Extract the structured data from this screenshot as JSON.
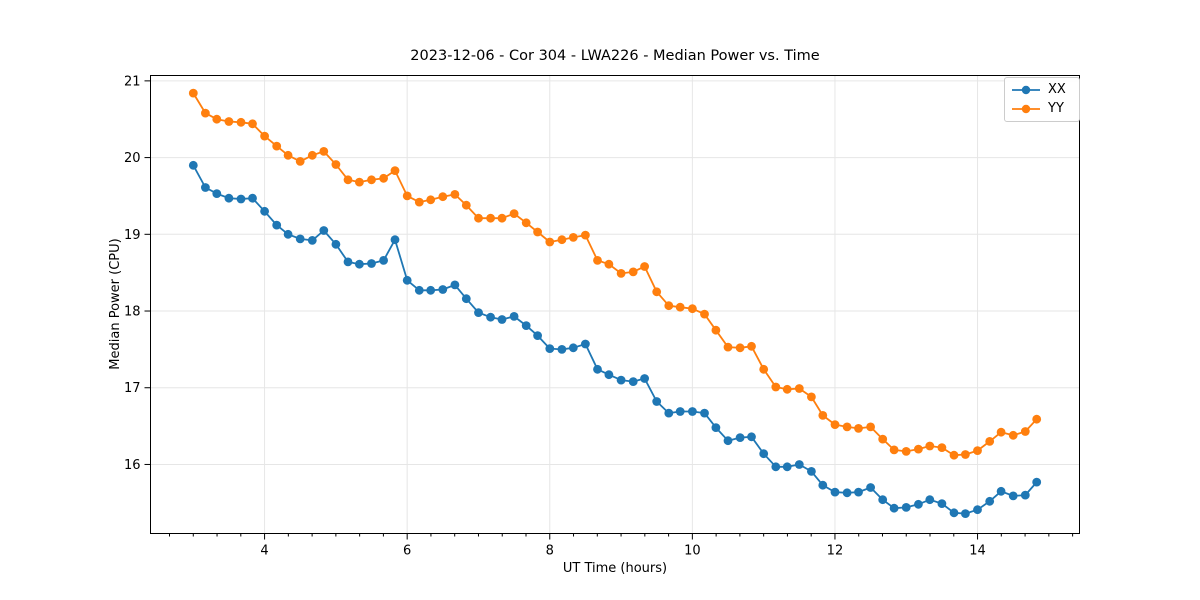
{
  "figure": {
    "title": "2023-12-06 - Cor 304 - LWA226 - Median Power vs. Time",
    "xlabel": "UT Time (hours)",
    "ylabel": "Median Power (CPU)",
    "background_color": "#ffffff",
    "grid_color": "#e6e6e6",
    "frame_color": "#000000",
    "text_color": "#000000"
  },
  "chart_data": {
    "type": "line",
    "title": "2023-12-06 - Cor 304 - LWA226 - Median Power vs. Time",
    "xlabel": "UT Time (hours)",
    "ylabel": "Median Power (CPU)",
    "grid": true,
    "legend_position": "upper right",
    "marker": "o",
    "xlim": [
      2.4,
      15.43
    ],
    "ylim": [
      15.1,
      21.07
    ],
    "x_major_ticks": [
      4,
      6,
      8,
      10,
      12,
      14
    ],
    "x_minor_tick_step_hours": 0.3333,
    "y_major_ticks": [
      16,
      17,
      18,
      19,
      20,
      21
    ],
    "x": [
      3.0,
      3.17,
      3.33,
      3.5,
      3.67,
      3.83,
      4.0,
      4.17,
      4.33,
      4.5,
      4.67,
      4.83,
      5.0,
      5.17,
      5.33,
      5.5,
      5.67,
      5.83,
      6.0,
      6.17,
      6.33,
      6.5,
      6.67,
      6.83,
      7.0,
      7.17,
      7.33,
      7.5,
      7.67,
      7.83,
      8.0,
      8.17,
      8.33,
      8.5,
      8.67,
      8.83,
      9.0,
      9.17,
      9.33,
      9.5,
      9.67,
      9.83,
      10.0,
      10.17,
      10.33,
      10.5,
      10.67,
      10.83,
      11.0,
      11.17,
      11.33,
      11.5,
      11.67,
      11.83,
      12.0,
      12.17,
      12.33,
      12.5,
      12.67,
      12.83,
      13.0,
      13.17,
      13.33,
      13.5,
      13.67,
      13.83,
      14.0,
      14.17,
      14.33,
      14.5,
      14.67,
      14.83
    ],
    "series": [
      {
        "name": "XX",
        "color": "#1f77b4",
        "values": [
          19.9,
          19.61,
          19.53,
          19.47,
          19.46,
          19.47,
          19.3,
          19.12,
          19.0,
          18.94,
          18.92,
          19.05,
          18.87,
          18.64,
          18.61,
          18.62,
          18.66,
          18.93,
          18.4,
          18.27,
          18.27,
          18.28,
          18.34,
          18.16,
          17.98,
          17.92,
          17.89,
          17.93,
          17.81,
          17.68,
          17.51,
          17.5,
          17.52,
          17.57,
          17.24,
          17.17,
          17.1,
          17.08,
          17.12,
          16.82,
          16.67,
          16.69,
          16.69,
          16.67,
          16.48,
          16.31,
          16.35,
          16.36,
          16.14,
          15.97,
          15.97,
          16.0,
          15.91,
          15.73,
          15.64,
          15.63,
          15.64,
          15.7,
          15.54,
          15.43,
          15.44,
          15.48,
          15.54,
          15.49,
          15.37,
          15.36,
          15.41,
          15.52,
          15.65,
          15.59,
          15.6,
          15.77
        ]
      },
      {
        "name": "YY",
        "color": "#ff7f0e",
        "values": [
          20.84,
          20.58,
          20.5,
          20.47,
          20.46,
          20.44,
          20.28,
          20.15,
          20.03,
          19.95,
          20.03,
          20.08,
          19.91,
          19.71,
          19.68,
          19.71,
          19.73,
          19.83,
          19.5,
          19.42,
          19.45,
          19.49,
          19.52,
          19.38,
          19.21,
          19.21,
          19.21,
          19.27,
          19.15,
          19.03,
          18.9,
          18.93,
          18.96,
          18.99,
          18.66,
          18.61,
          18.49,
          18.51,
          18.58,
          18.25,
          18.07,
          18.05,
          18.03,
          17.96,
          17.75,
          17.53,
          17.52,
          17.54,
          17.24,
          17.01,
          16.98,
          16.99,
          16.88,
          16.64,
          16.52,
          16.49,
          16.47,
          16.49,
          16.33,
          16.19,
          16.17,
          16.2,
          16.24,
          16.22,
          16.12,
          16.13,
          16.18,
          16.3,
          16.42,
          16.38,
          16.43,
          16.59
        ]
      }
    ]
  }
}
